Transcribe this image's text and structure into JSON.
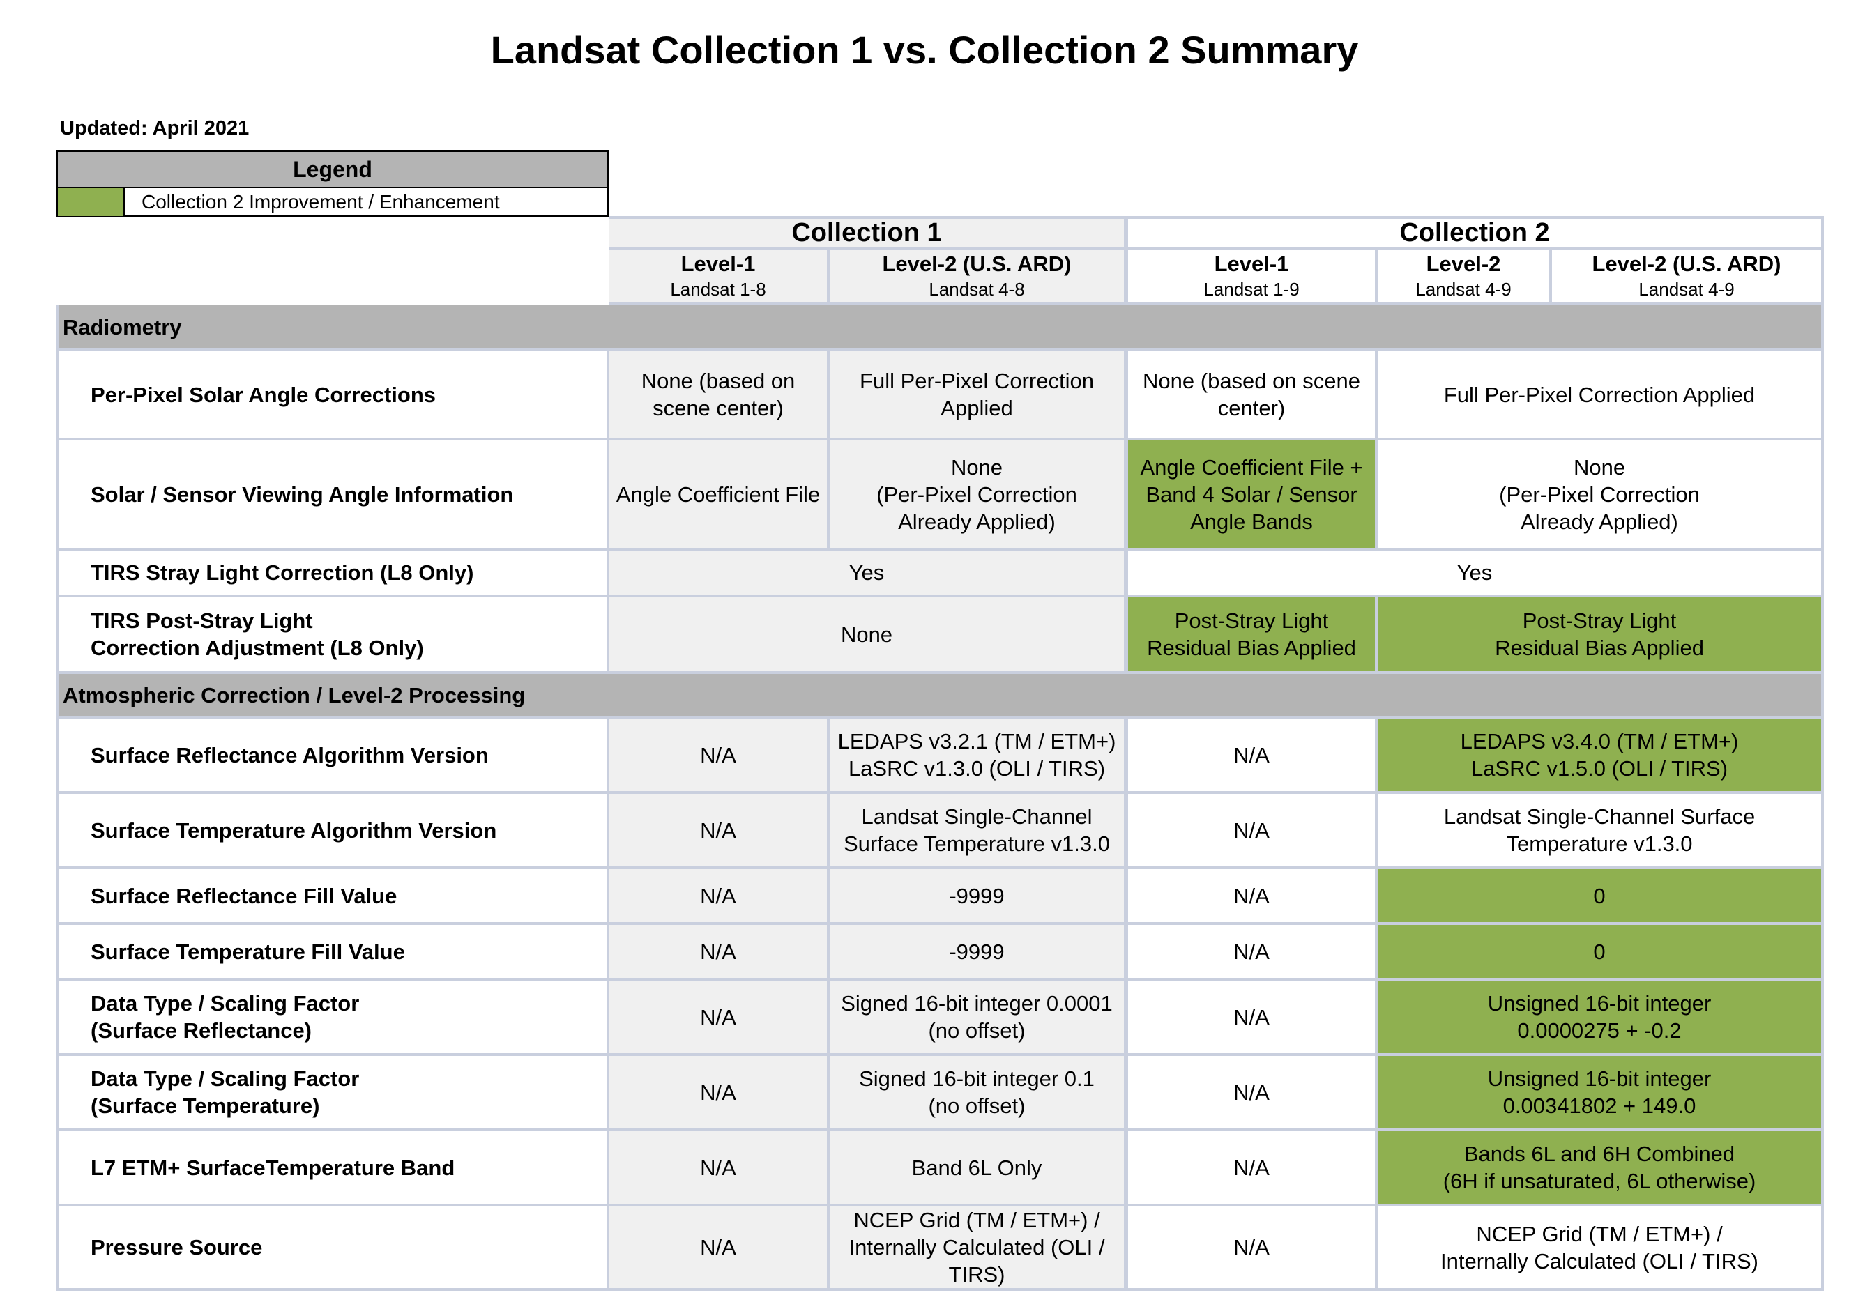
{
  "title": "Landsat Collection 1 vs. Collection 2 Summary",
  "updated": "Updated: April 2021",
  "legend": {
    "heading": "Legend",
    "item_label": "Collection 2 Improvement / Enhancement",
    "item_color": "#8fb050"
  },
  "colors": {
    "improvement_green": "#8fb050",
    "section_gray": "#b4b4b4",
    "collection1_fill": "#f0f0f0",
    "grid_line": "#c9cfde"
  },
  "header": {
    "collection1": "Collection 1",
    "collection2": "Collection 2",
    "c1_level1": {
      "name": "Level-1",
      "sub": "Landsat 1-8"
    },
    "c1_level2_ard": {
      "name": "Level-2 (U.S. ARD)",
      "sub": "Landsat 4-8"
    },
    "c2_level1": {
      "name": "Level-1",
      "sub": "Landsat 1-9"
    },
    "c2_level2": {
      "name": "Level-2",
      "sub": "Landsat 4-9"
    },
    "c2_level2_ard": {
      "name": "Level-2 (U.S. ARD)",
      "sub": "Landsat 4-9"
    }
  },
  "sections": {
    "radiometry": "Radiometry",
    "atmospheric": "Atmospheric Correction / Level-2 Processing"
  },
  "rows": {
    "solar_angle": {
      "label": "Per-Pixel Solar Angle Corrections",
      "c1_l1": [
        "None (based on",
        "scene center)"
      ],
      "c1_l2": [
        "Full Per-Pixel Correction",
        "Applied"
      ],
      "c2_l1": [
        "None (based on scene",
        "center)"
      ],
      "c2_l2": [
        "Full Per-Pixel Correction Applied"
      ]
    },
    "viewing_angle": {
      "label": "Solar / Sensor Viewing Angle Information",
      "c1_l1": [
        "Angle Coefficient File"
      ],
      "c1_l2": [
        "None",
        "(Per-Pixel Correction",
        "Already Applied)"
      ],
      "c2_l1": [
        "Angle Coefficient File +",
        "Band 4 Solar / Sensor",
        "Angle Bands"
      ],
      "c2_l2": [
        "None",
        "(Per-Pixel Correction",
        "Already Applied)"
      ]
    },
    "stray_light": {
      "label": "TIRS Stray Light Correction (L8 Only)",
      "c1": [
        "Yes"
      ],
      "c2": [
        "Yes"
      ]
    },
    "post_stray": {
      "label": [
        "TIRS Post-Stray Light",
        "Correction Adjustment (L8 Only)"
      ],
      "c1": [
        "None"
      ],
      "c2_l1": [
        "Post-Stray Light",
        "Residual Bias Applied"
      ],
      "c2_l2": [
        "Post-Stray Light",
        "Residual Bias Applied"
      ]
    },
    "sr_version": {
      "label": "Surface Reflectance Algorithm Version",
      "c1_l1": [
        "N/A"
      ],
      "c1_l2": [
        "LEDAPS v3.2.1 (TM / ETM+)",
        "LaSRC v1.3.0 (OLI / TIRS)"
      ],
      "c2_l1": [
        "N/A"
      ],
      "c2_l2": [
        "LEDAPS v3.4.0 (TM / ETM+)",
        "LaSRC v1.5.0 (OLI / TIRS)"
      ]
    },
    "st_version": {
      "label": "Surface Temperature Algorithm Version",
      "c1_l1": [
        "N/A"
      ],
      "c1_l2": [
        "Landsat Single-Channel",
        "Surface Temperature v1.3.0"
      ],
      "c2_l1": [
        "N/A"
      ],
      "c2_l2": [
        "Landsat Single-Channel Surface",
        "Temperature v1.3.0"
      ]
    },
    "sr_fill": {
      "label": "Surface Reflectance Fill Value",
      "c1_l1": [
        "N/A"
      ],
      "c1_l2": [
        "-9999"
      ],
      "c2_l1": [
        "N/A"
      ],
      "c2_l2": [
        "0"
      ]
    },
    "st_fill": {
      "label": "Surface Temperature Fill Value",
      "c1_l1": [
        "N/A"
      ],
      "c1_l2": [
        "-9999"
      ],
      "c2_l1": [
        "N/A"
      ],
      "c2_l2": [
        "0"
      ]
    },
    "sr_scaling": {
      "label": [
        "Data Type / Scaling Factor",
        "(Surface Reflectance)"
      ],
      "c1_l1": [
        "N/A"
      ],
      "c1_l2": [
        "Signed 16-bit integer 0.0001",
        "(no offset)"
      ],
      "c2_l1": [
        "N/A"
      ],
      "c2_l2": [
        "Unsigned 16-bit integer",
        "0.0000275 + -0.2"
      ]
    },
    "st_scaling": {
      "label": [
        "Data Type / Scaling Factor",
        "(Surface Temperature)"
      ],
      "c1_l1": [
        "N/A"
      ],
      "c1_l2": [
        "Signed 16-bit integer 0.1",
        "(no offset)"
      ],
      "c2_l1": [
        "N/A"
      ],
      "c2_l2": [
        "Unsigned 16-bit integer",
        "0.00341802 + 149.0"
      ]
    },
    "l7_band": {
      "label": "L7 ETM+ SurfaceTemperature Band",
      "c1_l1": [
        "N/A"
      ],
      "c1_l2": [
        "Band 6L Only"
      ],
      "c2_l1": [
        "N/A"
      ],
      "c2_l2": [
        "Bands 6L and 6H Combined",
        "(6H if unsaturated, 6L otherwise)"
      ]
    },
    "pressure": {
      "label": "Pressure Source",
      "c1_l1": [
        "N/A"
      ],
      "c1_l2": [
        "NCEP Grid (TM / ETM+) /",
        "Internally Calculated (OLI /",
        "TIRS)"
      ],
      "c2_l1": [
        "N/A"
      ],
      "c2_l2": [
        "NCEP Grid (TM / ETM+) /",
        "Internally Calculated (OLI / TIRS)"
      ]
    }
  }
}
